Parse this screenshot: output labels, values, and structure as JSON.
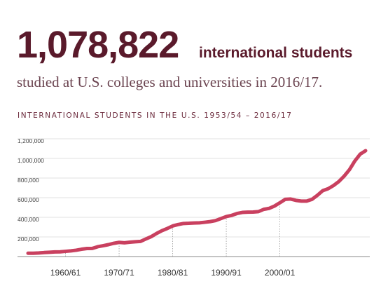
{
  "header": {
    "number": "1,078,822",
    "unit": "international students"
  },
  "chart_data": {
    "type": "line",
    "title": "INTERNATIONAL STUDENTS IN THE U.S. 1953/54 – 2016/17",
    "subtitle": "studied at U.S. colleges and universities in 2016/17.",
    "x": [
      1953,
      1954,
      1955,
      1956,
      1957,
      1958,
      1959,
      1960,
      1961,
      1962,
      1963,
      1964,
      1965,
      1966,
      1967,
      1968,
      1969,
      1970,
      1971,
      1972,
      1973,
      1974,
      1975,
      1976,
      1977,
      1978,
      1979,
      1980,
      1981,
      1982,
      1983,
      1984,
      1985,
      1986,
      1987,
      1988,
      1989,
      1990,
      1991,
      1992,
      1993,
      1994,
      1995,
      1996,
      1997,
      1998,
      1999,
      2000,
      2001,
      2002,
      2003,
      2004,
      2005,
      2006,
      2007,
      2008,
      2009,
      2010,
      2011,
      2012,
      2013,
      2014,
      2015,
      2016
    ],
    "values": [
      34232,
      34232,
      36494,
      40666,
      43391,
      47245,
      48486,
      53107,
      58086,
      64705,
      74814,
      82045,
      82709,
      100262,
      110315,
      121362,
      134959,
      144708,
      140126,
      146097,
      151066,
      154580,
      179344,
      203068,
      235509,
      263938,
      286343,
      311882,
      326299,
      336985,
      338894,
      342113,
      343777,
      349609,
      356187,
      366354,
      386851,
      407529,
      419585,
      438618,
      449749,
      452635,
      453787,
      457984,
      481280,
      490933,
      514723,
      547867,
      582996,
      586323,
      572509,
      565039,
      564766,
      582984,
      623805,
      671616,
      690923,
      723277,
      764495,
      819644,
      886052,
      974926,
      1043839,
      1078822
    ],
    "color": "#c9405f",
    "xlim": [
      1953,
      2016
    ],
    "ylim": [
      0,
      1200000
    ],
    "yticks": [
      {
        "value": 200000,
        "label": "200,000"
      },
      {
        "value": 400000,
        "label": "400,000"
      },
      {
        "value": 600000,
        "label": "600,000"
      },
      {
        "value": 800000,
        "label": "800,000"
      },
      {
        "value": 1000000,
        "label": "1,000,000"
      },
      {
        "value": 1200000,
        "label": "1,200,000"
      }
    ],
    "xticks": [
      {
        "value": 1960,
        "label": "1960/61"
      },
      {
        "value": 1970,
        "label": "1970/71"
      },
      {
        "value": 1980,
        "label": "1980/81"
      },
      {
        "value": 1990,
        "label": "1990/91"
      },
      {
        "value": 2000,
        "label": "2000/01"
      }
    ],
    "grid": true
  }
}
